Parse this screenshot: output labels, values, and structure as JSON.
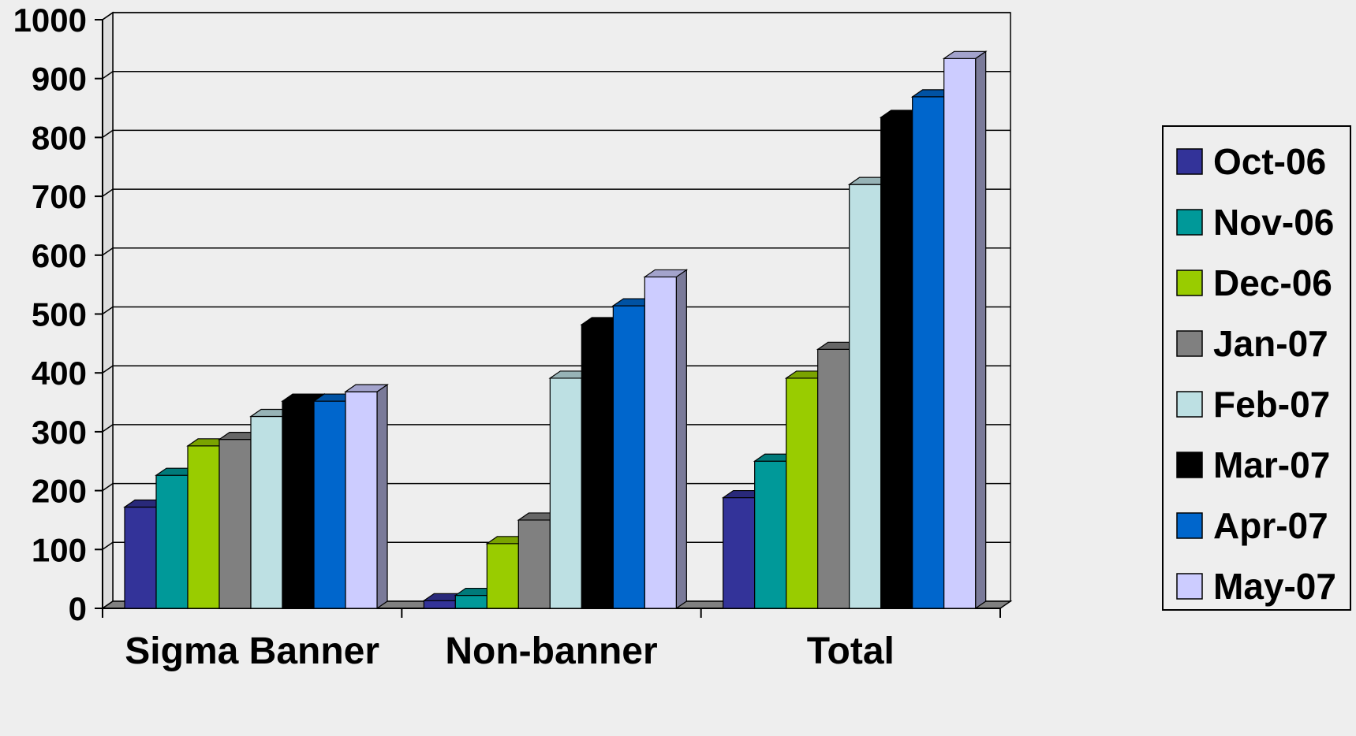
{
  "chart_data": {
    "type": "bar",
    "title": "",
    "xlabel": "",
    "ylabel": "",
    "ylim": [
      0,
      1000
    ],
    "yticks": [
      "0",
      "100",
      "200",
      "300",
      "400",
      "500",
      "600",
      "700",
      "800",
      "900",
      "1000"
    ],
    "categories": [
      "Sigma Banner",
      "Non-banner",
      "Total"
    ],
    "grid": true,
    "legend_position": "right",
    "style": "3d-clustered-column",
    "series": [
      {
        "name": "Oct-06",
        "color": "#333399",
        "values": [
          172,
          13,
          188
        ]
      },
      {
        "name": "Nov-06",
        "color": "#009999",
        "values": [
          226,
          22,
          250
        ]
      },
      {
        "name": "Dec-06",
        "color": "#99cc00",
        "values": [
          276,
          110,
          391
        ]
      },
      {
        "name": "Jan-07",
        "color": "#808080",
        "values": [
          287,
          150,
          440
        ]
      },
      {
        "name": "Feb-07",
        "color": "#bde0e3",
        "values": [
          326,
          391,
          720
        ]
      },
      {
        "name": "Mar-07",
        "color": "#000000",
        "values": [
          352,
          482,
          834
        ]
      },
      {
        "name": "Apr-07",
        "color": "#0066cc",
        "values": [
          352,
          514,
          869
        ]
      },
      {
        "name": "May-07",
        "color": "#ccccff",
        "values": [
          368,
          563,
          934
        ]
      }
    ]
  }
}
